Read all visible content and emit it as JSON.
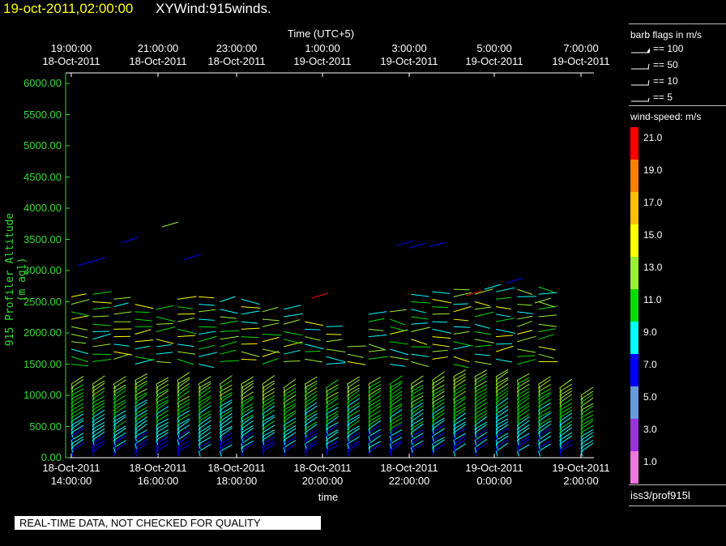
{
  "header": {
    "date_text": "19-oct-2011,02:00:00",
    "name_text": "XYWind:915winds."
  },
  "chart_data": {
    "type": "wind-barb time-height profile",
    "top_axis": {
      "title": "Time (UTC+5)",
      "ticks": [
        {
          "time": "19:00:00",
          "date": "18-Oct-2011"
        },
        {
          "time": "21:00:00",
          "date": "18-Oct-2011"
        },
        {
          "time": "23:00:00",
          "date": "18-Oct-2011"
        },
        {
          "time": "1:00:00",
          "date": "19-Oct-2011"
        },
        {
          "time": "3:00:00",
          "date": "19-Oct-2011"
        },
        {
          "time": "5:00:00",
          "date": "19-Oct-2011"
        },
        {
          "time": "7:00:00",
          "date": "19-Oct-2011"
        }
      ]
    },
    "bottom_axis": {
      "title": "time",
      "ticks": [
        {
          "date": "18-Oct-2011",
          "time": "14:00:00"
        },
        {
          "date": "18-Oct-2011",
          "time": "16:00:00"
        },
        {
          "date": "18-Oct-2011",
          "time": "18:00:00"
        },
        {
          "date": "18-Oct-2011",
          "time": "20:00:00"
        },
        {
          "date": "18-Oct-2011",
          "time": "22:00:00"
        },
        {
          "date": "19-Oct-2011",
          "time": "0:00:00"
        },
        {
          "date": "19-Oct-2011",
          "time": "2:00:00"
        }
      ]
    },
    "y_axis": {
      "label": "915 Profiler Altitude (m agl)",
      "ylim": [
        0,
        6200
      ],
      "ticks": [
        "0.00",
        "500.00",
        "1000.00",
        "1500.00",
        "2000.00",
        "2500.00",
        "3000.00",
        "3500.00",
        "4000.00",
        "4500.00",
        "5000.00",
        "5500.00",
        "6000.00"
      ]
    },
    "barb_legend": {
      "title": "barb flags in m/s",
      "entries": [
        "== 100",
        "== 50",
        "== 10",
        "== 5"
      ]
    },
    "colorbar": {
      "title": "wind-speed: m/s",
      "bins": [
        {
          "label": "21.0",
          "color": "#ff0000"
        },
        {
          "label": "19.0",
          "color": "#ff7f00"
        },
        {
          "label": "17.0",
          "color": "#ffbf00"
        },
        {
          "label": "15.0",
          "color": "#ffff00"
        },
        {
          "label": "13.0",
          "color": "#99ee33"
        },
        {
          "label": "11.0",
          "color": "#00dd00"
        },
        {
          "label": "9.0",
          "color": "#00ffff"
        },
        {
          "label": "7.0",
          "color": "#0000ff"
        },
        {
          "label": "5.0",
          "color": "#6699dd"
        },
        {
          "label": "3.0",
          "color": "#9933dd"
        },
        {
          "label": "1.0",
          "color": "#ee77dd"
        }
      ]
    },
    "station": "iss3/prof915l",
    "profiles": {
      "times_hours": [
        14.0,
        14.5,
        15.0,
        15.5,
        16.0,
        16.5,
        17.0,
        17.5,
        18.0,
        18.5,
        19.0,
        19.5,
        20.0,
        20.5,
        21.0,
        21.5,
        22.0,
        22.5,
        23.0,
        23.5,
        24.0,
        24.5,
        25.0,
        25.5,
        26.0
      ],
      "levels_m_start": 100,
      "level_step_m": 60,
      "low_mode_top_m": [
        1200,
        1230,
        1220,
        1250,
        1180,
        1250,
        1220,
        1210,
        1200,
        1180,
        1170,
        1220,
        1160,
        1200,
        1220,
        1230,
        1200,
        1260,
        1300,
        1310,
        1300,
        1280,
        1220,
        1120,
        1000
      ],
      "high_mode_top_m": [
        2620,
        2650,
        2580,
        2530,
        2480,
        2600,
        2600,
        2600,
        2550,
        2400,
        2400,
        2280,
        2200,
        1800,
        2300,
        2400,
        2650,
        2750,
        2700,
        2680,
        2700,
        2800,
        2800,
        0,
        0
      ]
    }
  },
  "footer": {
    "warning": "REAL-TIME DATA, NOT CHECKED FOR QUALITY"
  }
}
